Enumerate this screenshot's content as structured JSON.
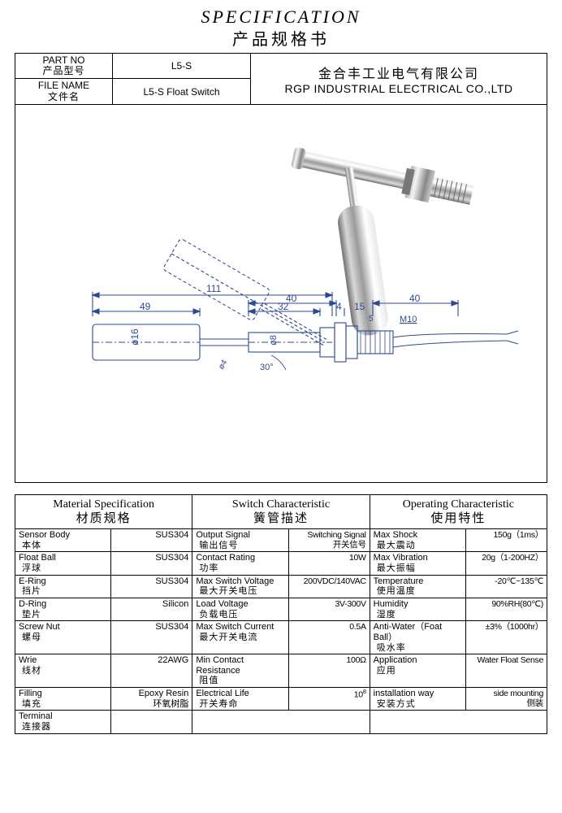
{
  "title": {
    "en": "SPECIFICATION",
    "cn": "产品规格书"
  },
  "header": {
    "partno_lbl_en": "PART NO",
    "partno_lbl_cn": "产品型号",
    "partno_val": "L5-S",
    "filename_lbl_en": "FILE NAME",
    "filename_lbl_cn": "文件名",
    "filename_val": "L5-S Float Switch",
    "company_cn": "金合丰工业电气有限公司",
    "company_en": "RGP INDUSTRIAL ELECTRICAL CO.,LTD"
  },
  "diagram": {
    "dims": {
      "d111": "111",
      "d40a": "40",
      "d40b": "40",
      "d49": "49",
      "d32": "32",
      "d4": "4",
      "d15": "15",
      "d5": "5",
      "m10": "M10",
      "ang30": "30°",
      "phi16": "ø16",
      "phi8": "ø8",
      "phi4": "ø4"
    },
    "color_line": "#2e4a8f"
  },
  "sections": {
    "mat": {
      "hdr_en": "Material Specification",
      "hdr_cn": "材质规格",
      "rows": [
        {
          "l_en": "Sensor Body",
          "l_cn": "本体",
          "v": "SUS304"
        },
        {
          "l_en": "Float Ball",
          "l_cn": "浮球",
          "v": "SUS304"
        },
        {
          "l_en": "E-Ring",
          "l_cn": "挡片",
          "v": "SUS304"
        },
        {
          "l_en": "D-Ring",
          "l_cn": "垫片",
          "v": "Silicon"
        },
        {
          "l_en": "Screw Nut",
          "l_cn": "螺母",
          "v": "SUS304"
        },
        {
          "l_en": "Wrie",
          "l_cn": "线材",
          "v": "22AWG"
        },
        {
          "l_en": "Filling",
          "l_cn": "填充",
          "v": "Epoxy Resin",
          "v_cn": "环氧树脂"
        },
        {
          "l_en": "Terminal",
          "l_cn": "连接器",
          "v": ""
        }
      ]
    },
    "sw": {
      "hdr_en": "Switch Characteristic",
      "hdr_cn": "簧管描述",
      "rows": [
        {
          "l_en": "Output Signal",
          "l_cn": "输出信号",
          "v": "Switching Signal",
          "v_cn": "开关信号"
        },
        {
          "l_en": "Contact Rating",
          "l_cn": "功率",
          "v": "10W"
        },
        {
          "l_en": "Max Switch Voltage",
          "l_cn": "最大开关电压",
          "v": "200VDC/140VAC"
        },
        {
          "l_en": "Load Voltage",
          "l_cn": "负载电压",
          "v": "3V-300V"
        },
        {
          "l_en": "Max Switch Current",
          "l_cn": "最大开关电流",
          "v": "0.5A"
        },
        {
          "l_en": "Min Contact Resistance",
          "l_cn": "阻值",
          "v": "100Ω"
        },
        {
          "l_en": "Electrical Life",
          "l_cn": "开关寿命",
          "v_html": "10<sup>8</sup>"
        }
      ]
    },
    "op": {
      "hdr_en": "Operating Characteristic",
      "hdr_cn": "使用特性",
      "rows": [
        {
          "l_en": "Max Shock",
          "l_cn": "最大震动",
          "v": "150g（1ms）"
        },
        {
          "l_en": "Max Vibration",
          "l_cn": "最大振幅",
          "v": "20g（1-200HZ）"
        },
        {
          "l_en": "Temperature",
          "l_cn": "使用温度",
          "v": "-20℃~135℃"
        },
        {
          "l_en": "Humidity",
          "l_cn": "湿度",
          "v": "90%RH(80℃)"
        },
        {
          "l_en": "Anti-Water（Foat Ball）",
          "l_cn": "吸水率",
          "v": "±3%（1000hr）"
        },
        {
          "l_en": "Application",
          "l_cn": "应用",
          "v": "Water Float Sense"
        },
        {
          "l_en": "installation way",
          "l_cn": "安装方式",
          "v": "side mounting",
          "v_cn": "侧装"
        }
      ]
    }
  }
}
